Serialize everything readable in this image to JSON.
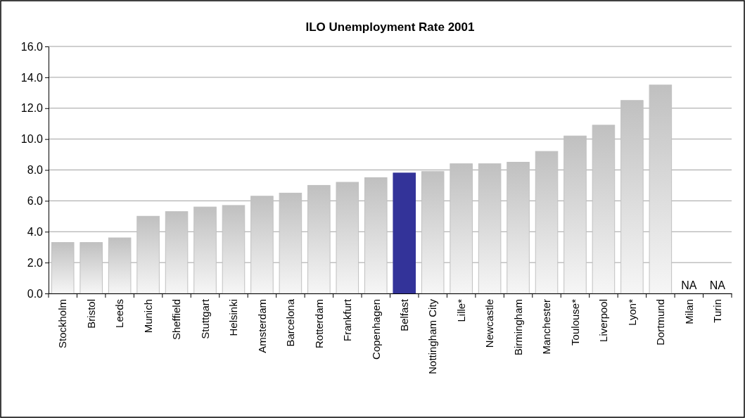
{
  "chart_data": {
    "type": "bar",
    "title": "ILO Unemployment Rate 2001",
    "categories": [
      "Stockholm",
      "Bristol",
      "Leeds",
      "Munich",
      "Sheffield",
      "Stuttgart",
      "Helsinki",
      "Amsterdam",
      "Barcelona",
      "Rotterdam",
      "Frankfurt",
      "Copenhagen",
      "Belfast",
      "Nottingham City",
      "Lille*",
      "Newcastle",
      "Birmingham",
      "Manchester",
      "Toulouse*",
      "Liverpool",
      "Lyon*",
      "Dortmund",
      "Milan",
      "Turin"
    ],
    "values": [
      3.3,
      3.3,
      3.6,
      5.0,
      5.3,
      5.6,
      5.7,
      6.3,
      6.5,
      7.0,
      7.2,
      7.5,
      7.8,
      7.9,
      8.4,
      8.4,
      8.5,
      9.2,
      10.2,
      10.9,
      12.5,
      13.5,
      null,
      null
    ],
    "colors": [
      "#c0c0c0",
      "#c0c0c0",
      "#c0c0c0",
      "#c0c0c0",
      "#c0c0c0",
      "#c0c0c0",
      "#c0c0c0",
      "#c0c0c0",
      "#c0c0c0",
      "#c0c0c0",
      "#c0c0c0",
      "#c0c0c0",
      "#333399",
      "#c0c0c0",
      "#c0c0c0",
      "#c0c0c0",
      "#c0c0c0",
      "#c0c0c0",
      "#c0c0c0",
      "#c0c0c0",
      "#c0c0c0",
      "#c0c0c0",
      null,
      null
    ],
    "value_labels": [
      null,
      null,
      null,
      null,
      null,
      null,
      null,
      null,
      null,
      null,
      null,
      null,
      null,
      null,
      null,
      null,
      null,
      null,
      null,
      null,
      null,
      null,
      "NA",
      "NA"
    ],
    "ylim": [
      0,
      16
    ],
    "yticks": [
      {
        "value": 0,
        "label": "0.0"
      },
      {
        "value": 2,
        "label": "2.0"
      },
      {
        "value": 4,
        "label": "4.0"
      },
      {
        "value": 6,
        "label": "6.0"
      },
      {
        "value": 8,
        "label": "8.0"
      },
      {
        "value": 10,
        "label": "10.0"
      },
      {
        "value": 12,
        "label": "12.0"
      },
      {
        "value": 14,
        "label": "14.0"
      },
      {
        "value": 16,
        "label": "16.0"
      }
    ],
    "grid": "y"
  }
}
